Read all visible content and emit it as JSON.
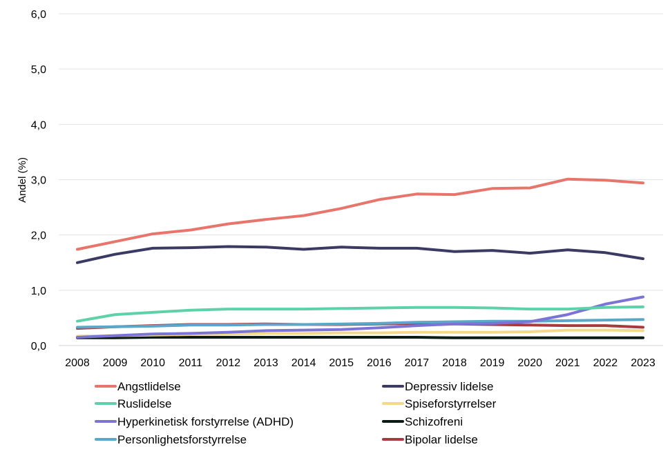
{
  "chart_data": {
    "type": "line",
    "ylabel": "Andel (%)",
    "xlabel": "",
    "title": "",
    "ylim": [
      0,
      6
    ],
    "yticks": [
      "0,0",
      "1,0",
      "2,0",
      "3,0",
      "4,0",
      "5,0",
      "6,0"
    ],
    "categories": [
      "2008",
      "2009",
      "2010",
      "2011",
      "2012",
      "2013",
      "2014",
      "2015",
      "2016",
      "2017",
      "2018",
      "2019",
      "2020",
      "2021",
      "2022",
      "2023"
    ],
    "grid": "horizontal",
    "legend_position": "bottom",
    "series": [
      {
        "name": "Angstlidelse",
        "color": "#e8756c",
        "values": [
          1.74,
          1.88,
          2.02,
          2.09,
          2.2,
          2.28,
          2.35,
          2.48,
          2.64,
          2.74,
          2.73,
          2.84,
          2.85,
          3.01,
          2.99,
          2.94
        ]
      },
      {
        "name": "Depressiv lidelse",
        "color": "#3b3a63",
        "values": [
          1.5,
          1.65,
          1.76,
          1.77,
          1.79,
          1.78,
          1.74,
          1.78,
          1.76,
          1.76,
          1.7,
          1.72,
          1.67,
          1.73,
          1.68,
          1.57
        ]
      },
      {
        "name": "Ruslidelse",
        "color": "#5ed1a9",
        "values": [
          0.44,
          0.56,
          0.6,
          0.64,
          0.66,
          0.66,
          0.66,
          0.67,
          0.68,
          0.69,
          0.69,
          0.68,
          0.66,
          0.66,
          0.69,
          0.7
        ]
      },
      {
        "name": "Spiseforstyrrelser",
        "color": "#f5d98a",
        "values": [
          0.17,
          0.18,
          0.19,
          0.2,
          0.21,
          0.22,
          0.22,
          0.23,
          0.23,
          0.24,
          0.24,
          0.24,
          0.25,
          0.28,
          0.28,
          0.27
        ]
      },
      {
        "name": "Hyperkinetisk forstyrrelse (ADHD)",
        "color": "#7b73d6",
        "values": [
          0.15,
          0.18,
          0.21,
          0.22,
          0.24,
          0.27,
          0.28,
          0.29,
          0.32,
          0.36,
          0.39,
          0.4,
          0.43,
          0.56,
          0.75,
          0.88
        ]
      },
      {
        "name": "Schizofreni",
        "color": "#0a1a14",
        "values": [
          0.14,
          0.14,
          0.15,
          0.15,
          0.15,
          0.15,
          0.15,
          0.15,
          0.15,
          0.15,
          0.14,
          0.14,
          0.14,
          0.14,
          0.14,
          0.14
        ]
      },
      {
        "name": "Personlighetsforstyrrelse",
        "color": "#5aa7c9",
        "values": [
          0.33,
          0.34,
          0.35,
          0.37,
          0.37,
          0.38,
          0.38,
          0.39,
          0.4,
          0.42,
          0.43,
          0.44,
          0.44,
          0.45,
          0.46,
          0.47
        ]
      },
      {
        "name": "Bipolar lidelse",
        "color": "#a73a3c",
        "values": [
          0.31,
          0.34,
          0.36,
          0.38,
          0.38,
          0.39,
          0.38,
          0.38,
          0.39,
          0.4,
          0.39,
          0.38,
          0.37,
          0.36,
          0.36,
          0.33
        ]
      }
    ]
  }
}
